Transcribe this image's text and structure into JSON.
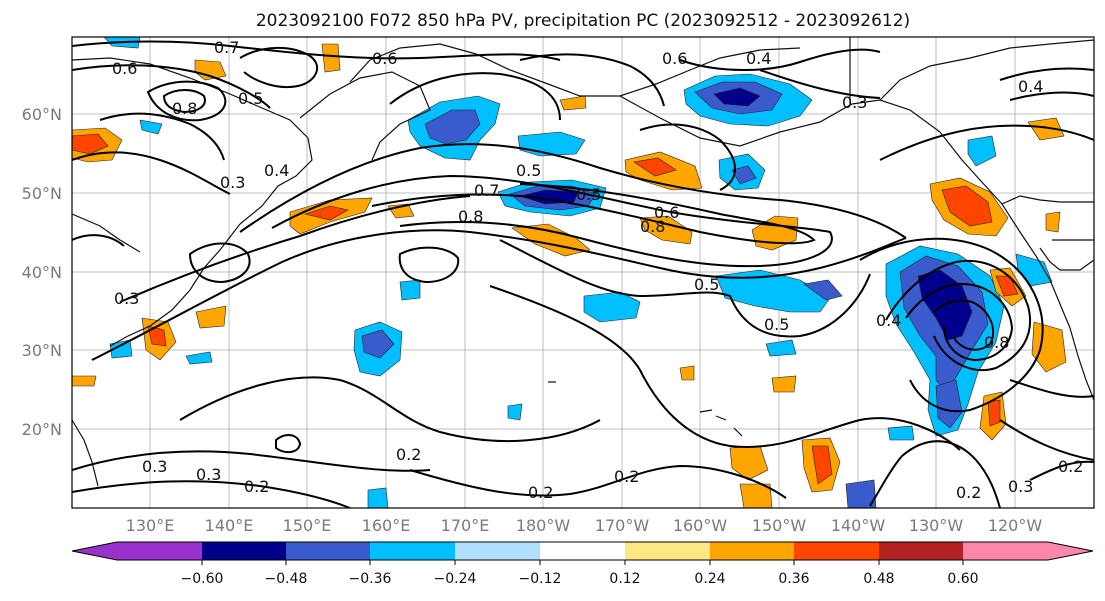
{
  "title": "2023092100 F072 850 hPa PV, precipitation PC (2023092512 - 2023092612)",
  "map": {
    "lat_ticks": [
      "60°N",
      "50°N",
      "40°N",
      "30°N",
      "20°N"
    ],
    "lon_ticks": [
      "130°E",
      "140°E",
      "150°E",
      "160°E",
      "170°E",
      "180°W",
      "170°W",
      "160°W",
      "150°W",
      "140°W",
      "130°W",
      "120°W"
    ],
    "gridlines": true,
    "contour_labels": [
      "0.7",
      "0.6",
      "0.8",
      "0.5",
      "0.4",
      "0.3",
      "0.6",
      "0.7",
      "0.5",
      "0.8",
      "0.6",
      "0.8",
      "0.5",
      "0.5",
      "0.4",
      "0.3",
      "0.4",
      "0.6",
      "0.3",
      "0.3",
      "0.2",
      "0.2",
      "0.2",
      "0.2",
      "0.3",
      "0.2",
      "0.2",
      "0.8",
      "0.3",
      "0.5",
      "0.4"
    ]
  },
  "colorbar": {
    "ticks": [
      "−0.60",
      "−0.48",
      "−0.36",
      "−0.24",
      "−0.12",
      "0.12",
      "0.24",
      "0.36",
      "0.48",
      "0.60"
    ],
    "colors": [
      "#9932cc",
      "#00008b",
      "#3a5bcc",
      "#00bfff",
      "#b0e0ff",
      "#ffffff",
      "#ffe884",
      "#ffa500",
      "#ff4500",
      "#b22222",
      "#ff88aa"
    ]
  },
  "palette": {
    "dark_blue": "#1a1aa6",
    "mid_blue": "#3a5bcc",
    "sky_blue": "#00bfff",
    "light_blue": "#b0e0ff",
    "light_yellow": "#ffe884",
    "orange": "#ffa500",
    "red_orange": "#ff4500"
  }
}
